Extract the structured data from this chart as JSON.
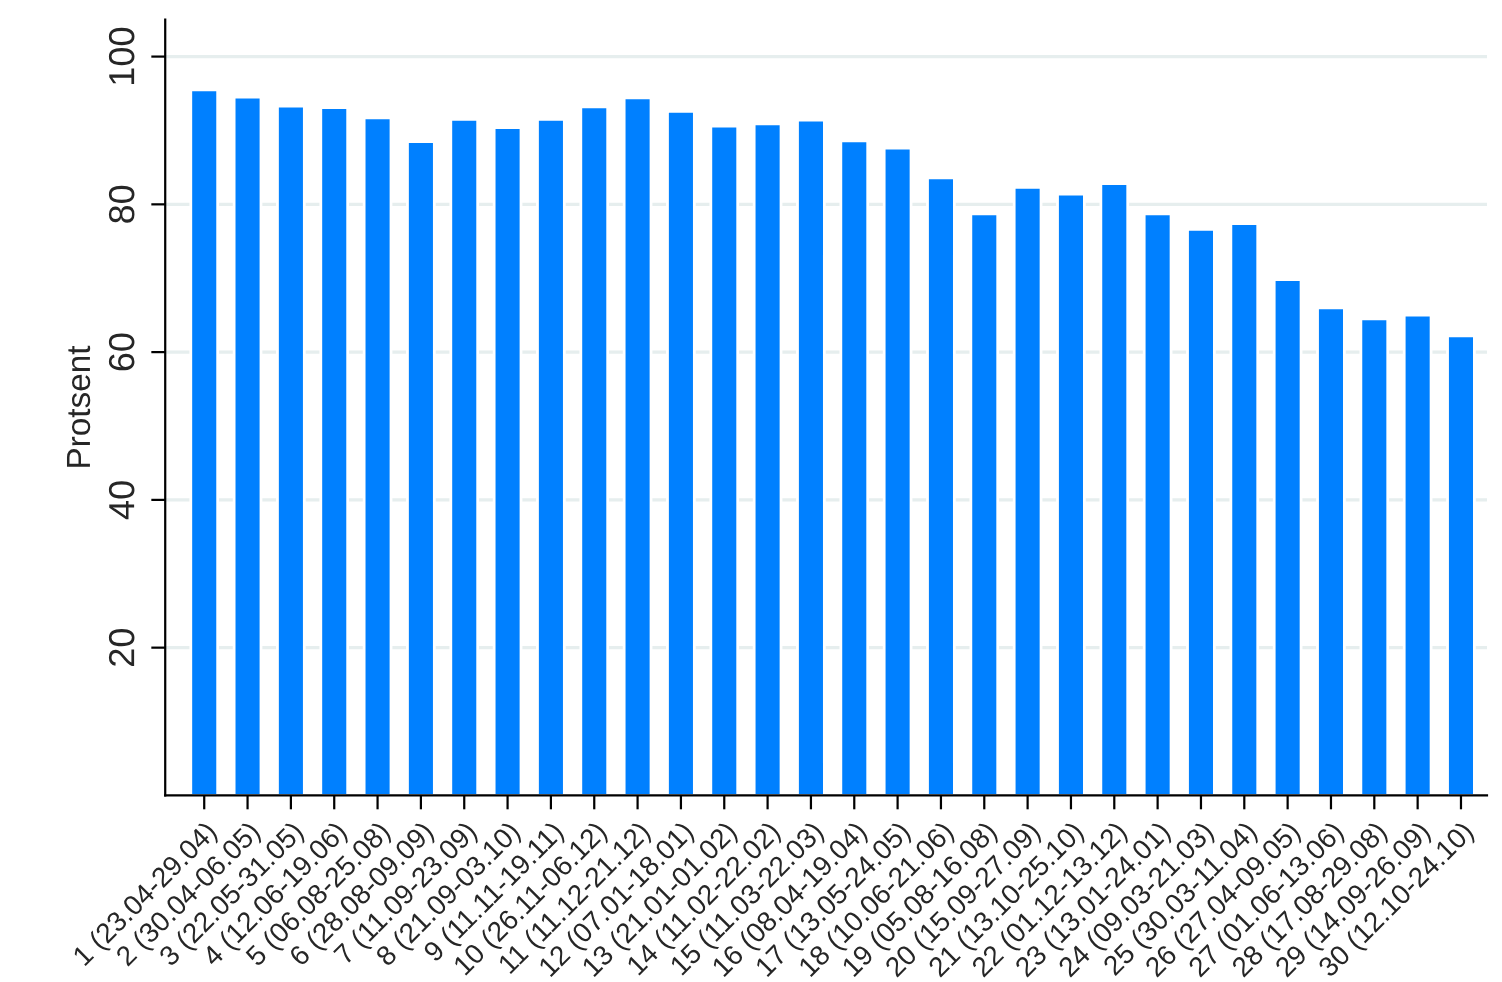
{
  "chart_data": {
    "type": "bar",
    "ylabel": "Protsent",
    "categories": [
      "1 (23.04-29.04)",
      "2 (30.04-06.05)",
      "3 (22.05-31.05)",
      "4 (12.06-19.06)",
      "5 (06.08-25.08)",
      "6 (28.08-09.09)",
      "7 (11.09-23.09)",
      "8 (21.09-03.10)",
      "9 (11.11-19.11)",
      "10 (26.11-06.12)",
      "11 (11.12-21.12)",
      "12 (07.01-18.01)",
      "13 (21.01-01.02)",
      "14 (11.02-22.02)",
      "15 (11.03-22.03)",
      "16 (08.04-19.04)",
      "17 (13.05-24.05)",
      "18 (10.06-21.06)",
      "19 (05.08-16.08)",
      "20 (15.09-27.09)",
      "21 (13.10-25.10)",
      "22 (01.12-13.12)",
      "23 (13.01-24.01)",
      "24 (09.03-21.03)",
      "25 (30.03-11.04)",
      "26 (27.04-09.05)",
      "27 (01.06-13.06)",
      "28 (17.08-29.08)",
      "29 (14.09-26.09)",
      "30 (12.10-24.10)"
    ],
    "values": [
      95.5,
      94.5,
      93.3,
      93.1,
      91.7,
      88.5,
      91.5,
      90.4,
      91.5,
      93.2,
      94.4,
      92.6,
      90.6,
      90.9,
      91.4,
      88.6,
      87.6,
      83.6,
      78.7,
      82.3,
      81.4,
      82.8,
      78.7,
      76.6,
      77.4,
      69.8,
      66.0,
      64.5,
      65.0,
      62.2
    ],
    "color": "#0080ff",
    "ylim": [
      0,
      105
    ],
    "yticks": [
      20,
      40,
      60,
      80,
      100
    ],
    "grid": "y"
  }
}
